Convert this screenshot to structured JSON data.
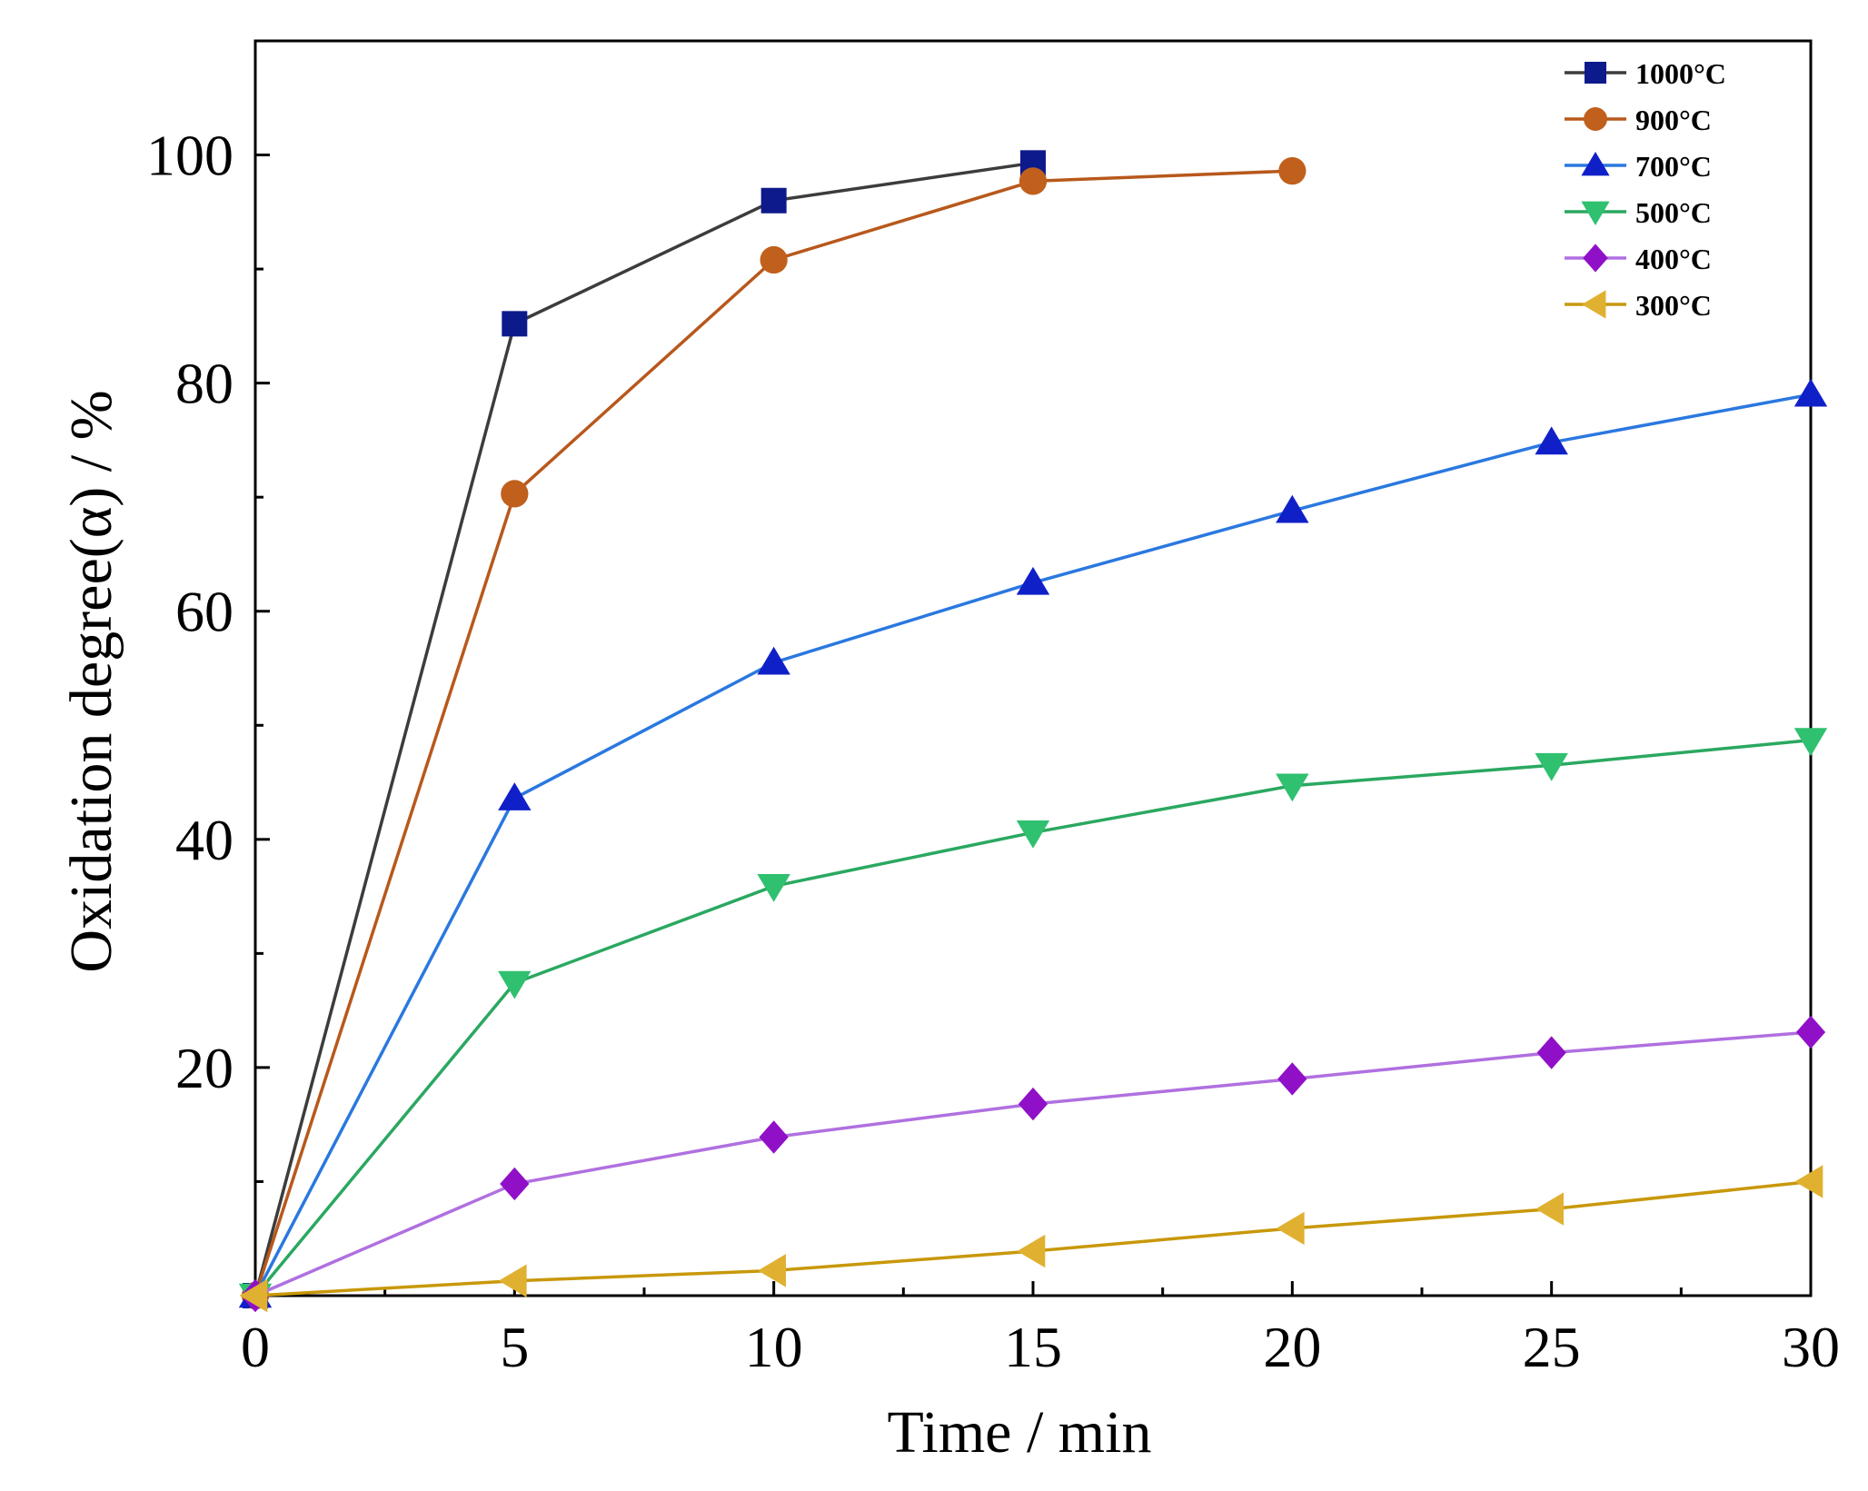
{
  "chart_data": {
    "type": "line",
    "title": "",
    "xlabel": "Time / min",
    "ylabel": "Oxidation degree(α) / %",
    "xlim": [
      0,
      30
    ],
    "ylim": [
      0,
      110
    ],
    "xticks": [
      0,
      5,
      10,
      15,
      20,
      25,
      30
    ],
    "xtick_labels": [
      "0",
      "5",
      "10",
      "15",
      "20",
      "25",
      "30"
    ],
    "yticks": [
      20,
      40,
      60,
      80,
      100
    ],
    "ytick_labels": [
      "20",
      "40",
      "60",
      "80",
      "100"
    ],
    "grid": false,
    "legend_position": "top-right",
    "series": [
      {
        "name": "1000°C",
        "color": "#3c3c3c",
        "marker_color": "#0d1a8c",
        "marker": "square",
        "x": [
          0,
          5,
          10,
          15
        ],
        "y": [
          0,
          85.2,
          96.0,
          99.3
        ]
      },
      {
        "name": "900°C",
        "color": "#b8581c",
        "marker_color": "#c0601c",
        "marker": "circle",
        "x": [
          0,
          5,
          10,
          15,
          20
        ],
        "y": [
          0,
          70.3,
          90.8,
          97.7,
          98.6
        ]
      },
      {
        "name": "700°C",
        "color": "#2a78e0",
        "marker_color": "#1020c8",
        "marker": "triangle-up",
        "x": [
          0,
          5,
          10,
          15,
          20,
          25,
          30
        ],
        "y": [
          0,
          43.6,
          55.5,
          62.5,
          68.8,
          74.8,
          79.0
        ]
      },
      {
        "name": "500°C",
        "color": "#2aa860",
        "marker_color": "#2fc070",
        "marker": "triangle-down",
        "x": [
          0,
          5,
          10,
          15,
          20,
          25,
          30
        ],
        "y": [
          0,
          27.4,
          35.9,
          40.6,
          44.7,
          46.5,
          48.7
        ]
      },
      {
        "name": "400°C",
        "color": "#b070e0",
        "marker_color": "#9010c8",
        "marker": "diamond",
        "x": [
          0,
          5,
          10,
          15,
          20,
          25,
          30
        ],
        "y": [
          0,
          9.8,
          13.9,
          16.8,
          19.0,
          21.3,
          23.1
        ]
      },
      {
        "name": "300°C",
        "color": "#c8980a",
        "marker_color": "#e0b030",
        "marker": "triangle-left",
        "x": [
          0,
          5,
          10,
          15,
          20,
          25,
          30
        ],
        "y": [
          0,
          1.3,
          2.2,
          3.9,
          5.9,
          7.6,
          10.0
        ]
      }
    ]
  }
}
